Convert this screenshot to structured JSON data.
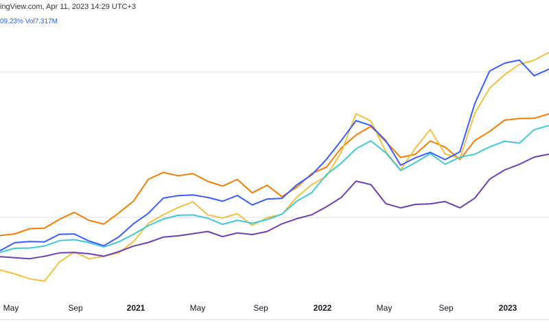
{
  "header": {
    "text": "ingView.com, Apr 11, 2023 14:29 UTC+3"
  },
  "stats": {
    "change": "09.23%",
    "vol_label": "Vol",
    "vol_value": "7.317M"
  },
  "colors": {
    "orange": "#f57c00",
    "yellow": "#f0c040",
    "blue": "#3a5bff",
    "cyan": "#40c8d8",
    "purple": "#6a3fb0",
    "grid": "#d8d8d8"
  },
  "chart_data": {
    "type": "line",
    "x_axis_ticks": [
      {
        "label": "May",
        "bold": false
      },
      {
        "label": "Sep",
        "bold": false
      },
      {
        "label": "2021",
        "bold": true
      },
      {
        "label": "May",
        "bold": false
      },
      {
        "label": "Sep",
        "bold": false
      },
      {
        "label": "2022",
        "bold": true
      },
      {
        "label": "May",
        "bold": false
      },
      {
        "label": "Sep",
        "bold": false
      },
      {
        "label": "2023",
        "bold": true
      }
    ],
    "x": [
      "2020-03",
      "2020-04",
      "2020-05",
      "2020-06",
      "2020-07",
      "2020-08",
      "2020-09",
      "2020-10",
      "2020-11",
      "2020-12",
      "2021-01",
      "2021-02",
      "2021-03",
      "2021-04",
      "2021-05",
      "2021-06",
      "2021-07",
      "2021-08",
      "2021-09",
      "2021-10",
      "2021-11",
      "2021-12",
      "2022-01",
      "2022-02",
      "2022-03",
      "2022-04",
      "2022-05",
      "2022-06",
      "2022-07",
      "2022-08",
      "2022-09",
      "2022-10",
      "2022-11",
      "2022-12",
      "2023-01",
      "2023-02",
      "2023-03",
      "2023-04"
    ],
    "series": [
      {
        "color_key": "orange",
        "values": [
          52,
          53,
          54,
          55,
          58,
          60,
          58,
          56,
          60,
          65,
          72,
          75,
          74,
          74,
          72,
          70,
          72,
          68,
          70,
          66,
          70,
          74,
          77,
          84,
          88,
          92,
          86,
          80,
          82,
          86,
          84,
          80,
          86,
          90,
          94,
          94,
          95,
          96
        ]
      },
      {
        "color_key": "yellow",
        "values": [
          40,
          38,
          36,
          36,
          42,
          46,
          44,
          44,
          46,
          50,
          56,
          60,
          62,
          64,
          60,
          58,
          60,
          56,
          58,
          60,
          66,
          70,
          74,
          82,
          96,
          94,
          82,
          76,
          84,
          90,
          82,
          80,
          96,
          106,
          110,
          114,
          116,
          118
        ]
      },
      {
        "color_key": "blue",
        "values": [
          47,
          49,
          50,
          50,
          52,
          53,
          50,
          48,
          52,
          56,
          60,
          66,
          66,
          67,
          66,
          64,
          67,
          63,
          65,
          66,
          70,
          74,
          80,
          86,
          94,
          92,
          86,
          78,
          80,
          82,
          80,
          82,
          100,
          112,
          114,
          116,
          110,
          112
        ]
      },
      {
        "color_key": "cyan",
        "values": [
          46,
          47,
          48,
          48,
          50,
          51,
          49,
          48,
          50,
          52,
          56,
          58,
          59,
          60,
          58,
          56,
          58,
          56,
          58,
          60,
          64,
          68,
          74,
          78,
          84,
          86,
          82,
          76,
          78,
          82,
          78,
          80,
          82,
          84,
          86,
          86,
          90,
          92
        ]
      },
      {
        "color_key": "purple",
        "values": [
          44,
          44,
          44,
          44,
          46,
          46,
          45,
          45,
          46,
          48,
          50,
          51,
          52,
          53,
          53,
          52,
          53,
          52,
          54,
          56,
          58,
          60,
          62,
          66,
          72,
          70,
          64,
          62,
          63,
          64,
          64,
          62,
          66,
          72,
          76,
          78,
          80,
          82
        ]
      }
    ],
    "ylim": [
      30,
      125
    ]
  }
}
